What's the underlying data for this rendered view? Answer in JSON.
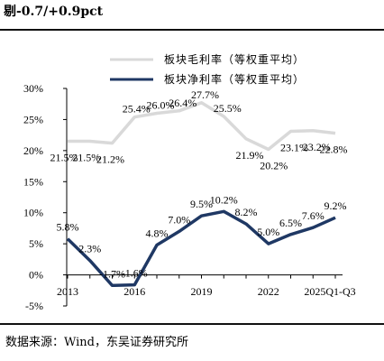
{
  "header": {
    "title": "剔-0.7/+0.9pct"
  },
  "footer": {
    "source": "数据来源：Wind，东吴证券研究所"
  },
  "chart_data": {
    "type": "line",
    "x": [
      "2013",
      "2014",
      "2015",
      "2016",
      "2017",
      "2018",
      "2019",
      "2020",
      "2021",
      "2022",
      "2023",
      "2024",
      "2025Q1-Q3"
    ],
    "x_tick_labels": [
      "2013",
      "2016",
      "2019",
      "2022",
      "2025Q1-Q3"
    ],
    "y_tick_labels": [
      "-5%",
      "0%",
      "5%",
      "10%",
      "15%",
      "20%",
      "25%",
      "30%"
    ],
    "ylim": [
      -5,
      30
    ],
    "series": [
      {
        "name": "板块毛利率（等权重平均）",
        "color": "#d9d9d9",
        "values": [
          21.5,
          21.5,
          21.2,
          25.4,
          26.0,
          26.4,
          27.7,
          25.5,
          21.9,
          20.2,
          23.1,
          23.2,
          22.8
        ],
        "labels": [
          "21.5%",
          "21.5%",
          "21.2%",
          "25.4%",
          "26.0%",
          "26.4%",
          "27.7%",
          "25.5%",
          "21.9%",
          "20.2%",
          "23.1%",
          "23.2%",
          "22.8%"
        ]
      },
      {
        "name": "板块净利率（等权重平均）",
        "color": "#1f3864",
        "values": [
          5.8,
          2.3,
          -1.7,
          -1.6,
          4.8,
          7.0,
          9.5,
          10.2,
          8.2,
          5.0,
          6.5,
          7.6,
          9.2
        ],
        "labels": [
          "5.8%",
          "2.3%",
          "-1.7%",
          "-1.6%",
          "4.8%",
          "7.0%",
          "9.5%",
          "10.2%",
          "8.2%",
          "5.0%",
          "6.5%",
          "7.6%",
          "9.2%"
        ]
      }
    ]
  }
}
